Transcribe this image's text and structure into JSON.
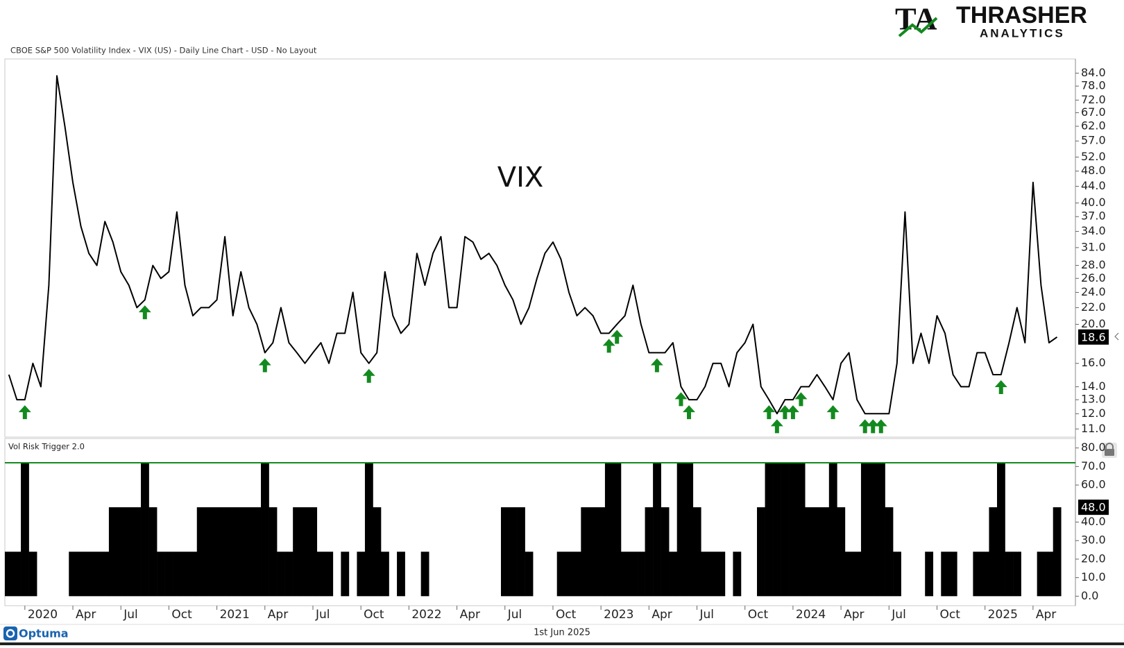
{
  "header": "CBOE S&P 500 Volatility Index - VIX (US) - Daily Line Chart - USD - No Layout",
  "logo": {
    "mark": "TA",
    "name": "THRASHER",
    "tagline": "ANALYTICS"
  },
  "footer": {
    "brand": "Optuma",
    "date": "1st Jun 2025"
  },
  "chart_data": [
    {
      "type": "line",
      "title": "VIX",
      "color": "#000000",
      "log_y": true,
      "xlim": [
        -0.5,
        133.3
      ],
      "ylim": [
        10.5,
        90
      ],
      "yticks": [
        {
          "value": 11,
          "label": "11.0"
        },
        {
          "value": 12,
          "label": "12.0"
        },
        {
          "value": 13,
          "label": "13.0"
        },
        {
          "value": 14,
          "label": "14.0"
        },
        {
          "value": 16,
          "label": "16.0"
        },
        {
          "value": 20,
          "label": "20.0"
        },
        {
          "value": 22,
          "label": "22.0"
        },
        {
          "value": 24,
          "label": "24.0"
        },
        {
          "value": 26,
          "label": "26.0"
        },
        {
          "value": 28,
          "label": "28.0"
        },
        {
          "value": 31,
          "label": "31.0"
        },
        {
          "value": 34,
          "label": "34.0"
        },
        {
          "value": 37,
          "label": "37.0"
        },
        {
          "value": 40,
          "label": "40.0"
        },
        {
          "value": 44,
          "label": "44.0"
        },
        {
          "value": 48,
          "label": "48.0"
        },
        {
          "value": 52,
          "label": "52.0"
        },
        {
          "value": 57,
          "label": "57.0"
        },
        {
          "value": 62,
          "label": "62.0"
        },
        {
          "value": 67,
          "label": "67.0"
        },
        {
          "value": 72,
          "label": "72.0"
        },
        {
          "value": 78,
          "label": "78.0"
        },
        {
          "value": 84,
          "label": "84.0"
        }
      ],
      "values": [
        15,
        13,
        13,
        16,
        14,
        25,
        82.7,
        62,
        45,
        35,
        30,
        28,
        36,
        32,
        27,
        25,
        22,
        23,
        28,
        26,
        27,
        38,
        25,
        21,
        22,
        22,
        23,
        33,
        21,
        27,
        22,
        20,
        17,
        18,
        22,
        18,
        17,
        16,
        17,
        18,
        16,
        19,
        19,
        24,
        17,
        16,
        17,
        27,
        21,
        19,
        20,
        30,
        25,
        30,
        33,
        22,
        22,
        33,
        32,
        29,
        30,
        28,
        25,
        23,
        20,
        22,
        26,
        30,
        32,
        29,
        24,
        21,
        22,
        21,
        19,
        19,
        20,
        21,
        25,
        20,
        17,
        17,
        17,
        18,
        14,
        13,
        13,
        14,
        16,
        16,
        14,
        17,
        18,
        20,
        14,
        13,
        12,
        13,
        13,
        14,
        14,
        15,
        14,
        13,
        16,
        17,
        13,
        12,
        12,
        12,
        12,
        16,
        38,
        16,
        19,
        16,
        21,
        19,
        15,
        14,
        14,
        17,
        17,
        15,
        15,
        18,
        22,
        18,
        45,
        25,
        18,
        18.6
      ]
    },
    {
      "type": "bar",
      "title": "Vol Risk Trigger 2.0",
      "color": "#000000",
      "signal_color": "#138a1f",
      "xlim": [
        -0.5,
        133.3
      ],
      "ylim": [
        -4,
        84
      ],
      "yticks": [
        {
          "value": 0,
          "label": "0.0"
        },
        {
          "value": 10,
          "label": "10.0"
        },
        {
          "value": 20,
          "label": "20.0"
        },
        {
          "value": 30,
          "label": "30.0"
        },
        {
          "value": 40,
          "label": "40.0"
        },
        {
          "value": 60,
          "label": "60.0"
        },
        {
          "value": 70,
          "label": "70.0"
        },
        {
          "value": 80,
          "label": "80.0"
        }
      ],
      "last_value": {
        "value": 48,
        "label": "48.0"
      },
      "xticks": [
        {
          "value": 2,
          "label": "2020"
        },
        {
          "value": 8,
          "label": "Apr"
        },
        {
          "value": 14,
          "label": "Jul"
        },
        {
          "value": 20,
          "label": "Oct"
        },
        {
          "value": 26,
          "label": "2021"
        },
        {
          "value": 32,
          "label": "Apr"
        },
        {
          "value": 38,
          "label": "Jul"
        },
        {
          "value": 44,
          "label": "Oct"
        },
        {
          "value": 50,
          "label": "2022"
        },
        {
          "value": 56,
          "label": "Apr"
        },
        {
          "value": 62,
          "label": "Jul"
        },
        {
          "value": 68,
          "label": "Oct"
        },
        {
          "value": 74,
          "label": "2023"
        },
        {
          "value": 80,
          "label": "Apr"
        },
        {
          "value": 86,
          "label": "Jul"
        },
        {
          "value": 92,
          "label": "Oct"
        },
        {
          "value": 98,
          "label": "2024"
        },
        {
          "value": 104,
          "label": "Apr"
        },
        {
          "value": 110,
          "label": "Jul"
        },
        {
          "value": 116,
          "label": "Oct"
        },
        {
          "value": 122,
          "label": "2025"
        },
        {
          "value": 128,
          "label": "Apr"
        }
      ],
      "values": [
        24,
        24,
        72,
        24,
        0,
        0,
        0,
        0,
        24,
        24,
        24,
        24,
        24,
        48,
        48,
        48,
        48,
        72,
        48,
        24,
        24,
        24,
        24,
        24,
        48,
        48,
        48,
        48,
        48,
        48,
        48,
        48,
        72,
        48,
        24,
        24,
        48,
        48,
        48,
        24,
        24,
        0,
        24,
        0,
        24,
        72,
        48,
        24,
        0,
        24,
        0,
        0,
        24,
        0,
        0,
        0,
        0,
        0,
        0,
        0,
        0,
        0,
        48,
        48,
        48,
        24,
        0,
        0,
        0,
        24,
        24,
        24,
        48,
        48,
        48,
        72,
        72,
        24,
        24,
        24,
        48,
        72,
        48,
        24,
        72,
        72,
        48,
        24,
        24,
        24,
        0,
        24,
        0,
        0,
        48,
        72,
        72,
        72,
        72,
        72,
        48,
        48,
        48,
        72,
        48,
        24,
        24,
        72,
        72,
        72,
        48,
        24,
        0,
        0,
        0,
        24,
        0,
        24,
        24,
        0,
        0,
        24,
        24,
        48,
        72,
        24,
        24,
        0,
        0,
        24,
        24,
        48
      ]
    }
  ]
}
